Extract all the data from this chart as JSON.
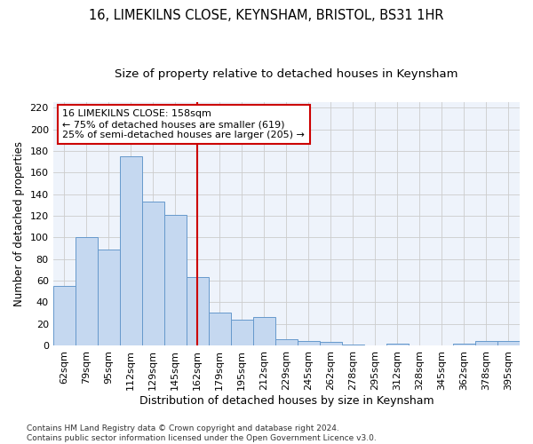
{
  "title": "16, LIMEKILNS CLOSE, KEYNSHAM, BRISTOL, BS31 1HR",
  "subtitle": "Size of property relative to detached houses in Keynsham",
  "xlabel": "Distribution of detached houses by size in Keynsham",
  "ylabel": "Number of detached properties",
  "categories": [
    "62sqm",
    "79sqm",
    "95sqm",
    "112sqm",
    "129sqm",
    "145sqm",
    "162sqm",
    "179sqm",
    "195sqm",
    "212sqm",
    "229sqm",
    "245sqm",
    "262sqm",
    "278sqm",
    "295sqm",
    "312sqm",
    "328sqm",
    "345sqm",
    "362sqm",
    "378sqm",
    "395sqm"
  ],
  "values": [
    55,
    100,
    89,
    175,
    133,
    121,
    63,
    30,
    24,
    26,
    6,
    4,
    3,
    1,
    0,
    2,
    0,
    0,
    2,
    4,
    4
  ],
  "bar_color": "#c5d8f0",
  "bar_edge_color": "#6699cc",
  "grid_color": "#cccccc",
  "bg_color": "#eef3fb",
  "vline_x_idx": 6,
  "vline_color": "#cc0000",
  "annotation_line1": "16 LIMEKILNS CLOSE: 158sqm",
  "annotation_line2": "← 75% of detached houses are smaller (619)",
  "annotation_line3": "25% of semi-detached houses are larger (205) →",
  "annotation_box_color": "#cc0000",
  "footnote": "Contains HM Land Registry data © Crown copyright and database right 2024.\nContains public sector information licensed under the Open Government Licence v3.0.",
  "ylim": [
    0,
    225
  ],
  "yticks": [
    0,
    20,
    40,
    60,
    80,
    100,
    120,
    140,
    160,
    180,
    200,
    220
  ],
  "title_fontsize": 10.5,
  "subtitle_fontsize": 9.5,
  "xlabel_fontsize": 9,
  "ylabel_fontsize": 8.5,
  "tick_fontsize": 8,
  "annotation_fontsize": 8,
  "footnote_fontsize": 6.5
}
